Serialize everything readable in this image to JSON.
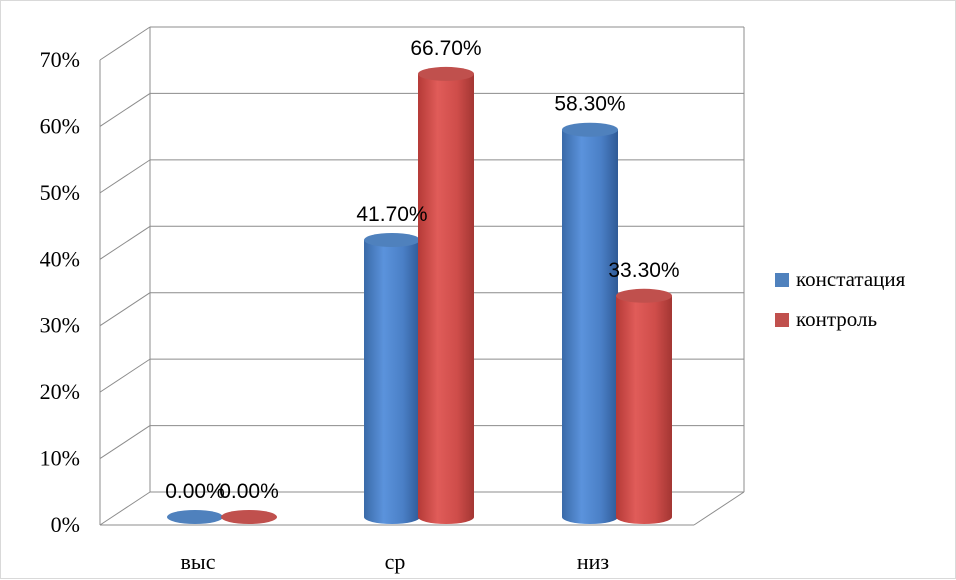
{
  "chart_data": {
    "type": "bar",
    "style": "3d-cylinder",
    "categories": [
      "выс",
      "ср",
      "низ"
    ],
    "series": [
      {
        "name": "констатация",
        "color": "#4f81bd",
        "values": [
          0.0,
          41.7,
          58.3
        ],
        "labels": [
          "0.00%",
          "41.70%",
          "58.30%"
        ]
      },
      {
        "name": "контроль",
        "color": "#c0504d",
        "values": [
          0.0,
          66.7,
          33.3
        ],
        "labels": [
          "0.00%",
          "66.70%",
          "33.30%"
        ]
      }
    ],
    "y_ticks": [
      "0%",
      "10%",
      "20%",
      "30%",
      "40%",
      "50%",
      "60%",
      "70%"
    ],
    "ylim": [
      0,
      70
    ],
    "grid": true,
    "legend_position": "right"
  }
}
